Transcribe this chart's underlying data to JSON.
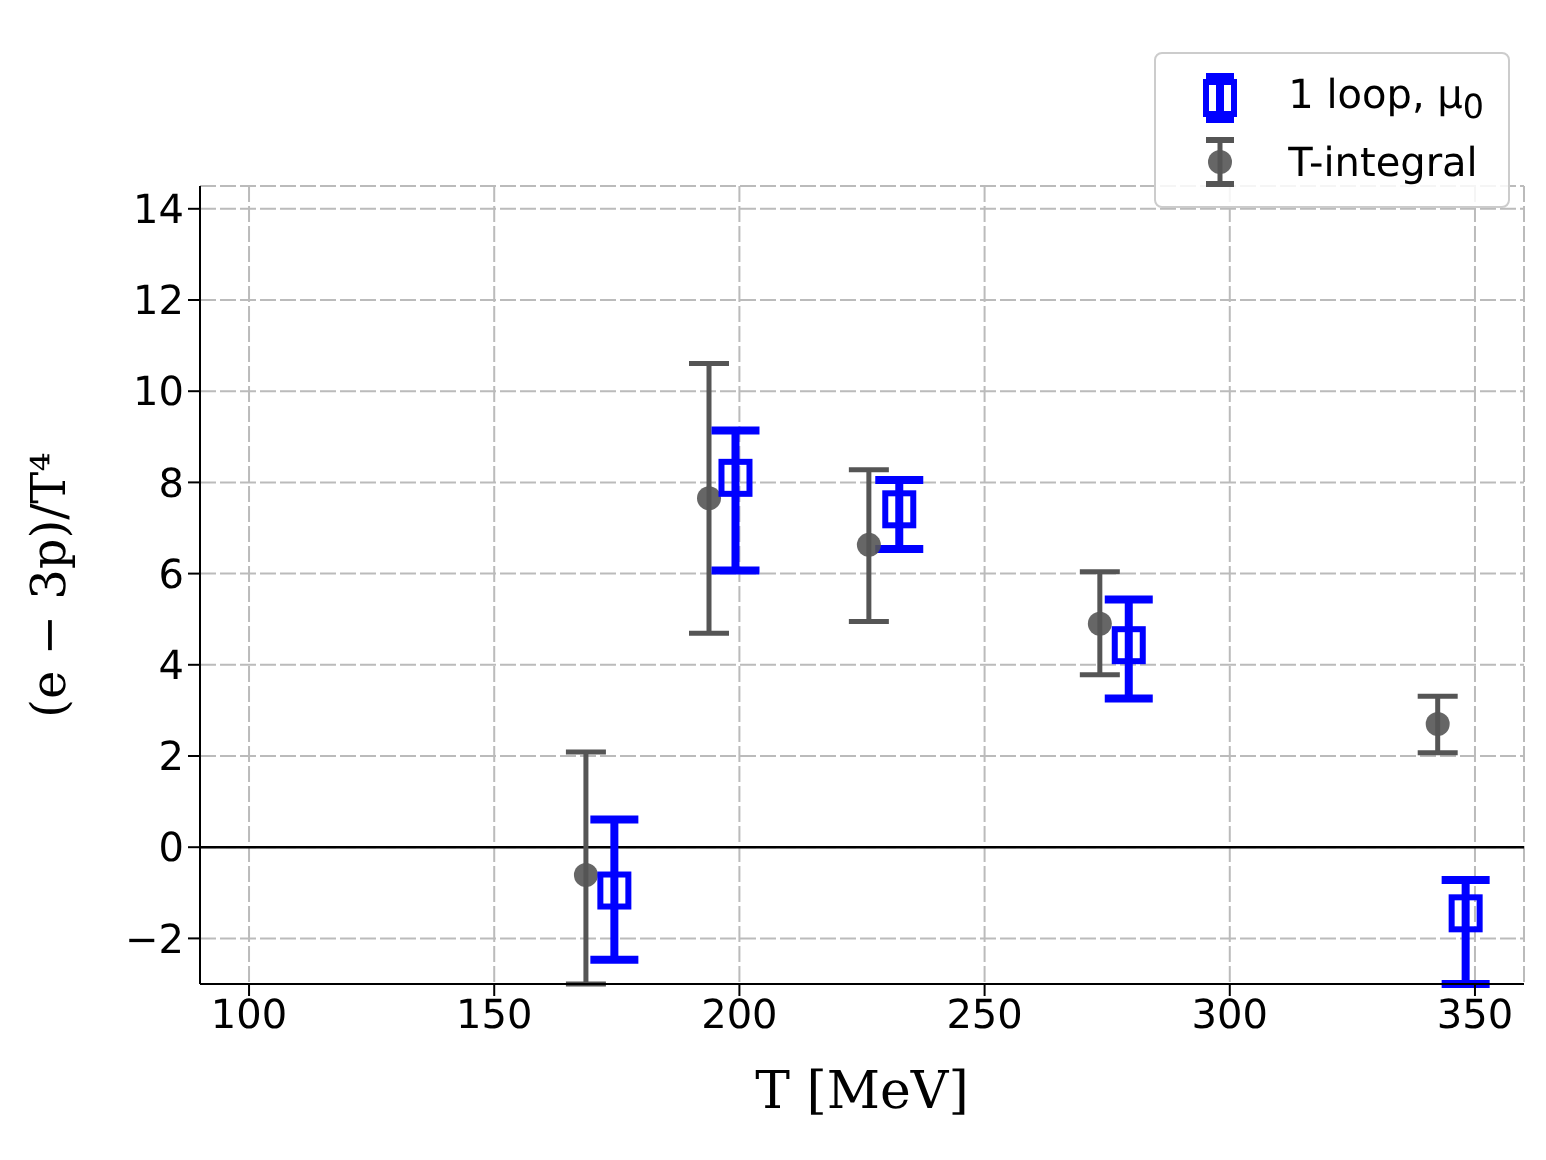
{
  "chart_data": {
    "type": "scatter",
    "xlabel": "T [MeV]",
    "ylabel": "(e − 3p)/T⁴",
    "xlim": [
      90,
      360
    ],
    "xticks": [
      100,
      150,
      200,
      250,
      300,
      350
    ],
    "ylim": [
      -3,
      14.5
    ],
    "yticks": [
      -2,
      0,
      2,
      4,
      6,
      8,
      10,
      12,
      14
    ],
    "grid": true,
    "legend": "top right",
    "ref_lines": [
      {
        "axis": "y",
        "value": 0,
        "color": "#000000",
        "line_style": "solid"
      }
    ],
    "series": [
      {
        "name": "1 loop, μ$_{0}$",
        "color": "#0000ff",
        "marker": "square",
        "x": [
          174.5,
          199.2,
          232.6,
          279.4,
          348.1
        ],
        "values": [
          -0.95,
          8.1,
          7.41,
          4.43,
          -1.45
        ],
        "errors": [
          [
            -2.47,
            0.61
          ],
          [
            6.07,
            9.14
          ],
          [
            6.54,
            8.05
          ],
          [
            3.26,
            5.43
          ],
          [
            -3,
            -0.72
          ]
        ]
      },
      {
        "name": "T-integral",
        "color": "#555555",
        "marker": "circle",
        "x": [
          168.7,
          193.8,
          226.4,
          273.5,
          342.4
        ],
        "values": [
          -0.61,
          7.65,
          6.63,
          4.9,
          2.7
        ],
        "errors": [
          [
            -3,
            2.09
          ],
          [
            4.69,
            10.61
          ],
          [
            4.95,
            8.28
          ],
          [
            3.78,
            6.04
          ],
          [
            2.07,
            3.31
          ]
        ]
      }
    ]
  }
}
